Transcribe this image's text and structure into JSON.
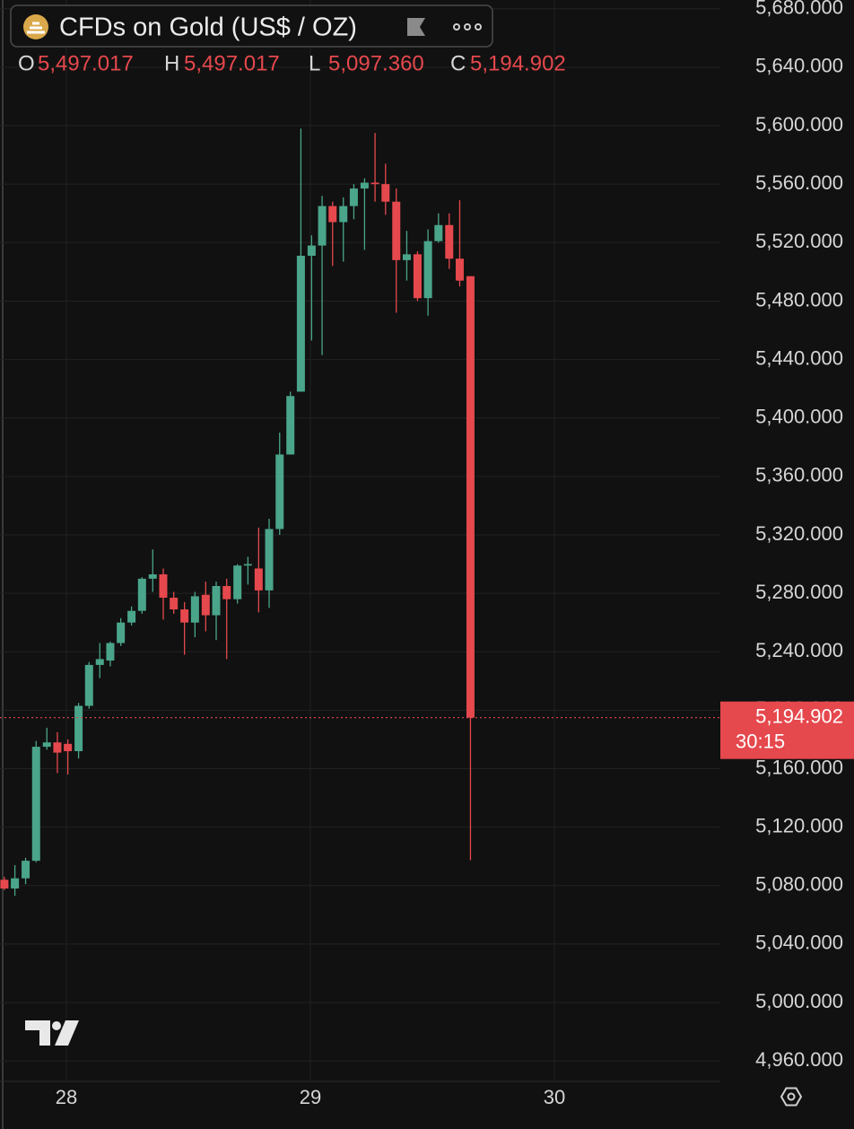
{
  "chart_data": {
    "type": "candlestick",
    "title": "CFDs on Gold (US$ / OZ)",
    "ohlc_legend": {
      "keys": [
        "O",
        "H",
        "L",
        "C"
      ],
      "values": [
        5497.017,
        5497.017,
        5097.36,
        5194.902
      ],
      "value_labels": [
        "5,497.017",
        "5,497.017",
        "5,097.360",
        "5,194.902"
      ]
    },
    "last_price": {
      "value": 5194.902,
      "label": "5,194.902",
      "countdown": "30:15"
    },
    "up_color": "#4aa58a",
    "down_color": "#e5484d",
    "grid": true,
    "xlim": [
      27.728,
      30.68
    ],
    "xticks": [
      28,
      29,
      30
    ],
    "ylim": [
      4946,
      5686
    ],
    "yticks": [
      {
        "value": 4960,
        "label": "4,960.000"
      },
      {
        "value": 5000,
        "label": "5,000.000"
      },
      {
        "value": 5040,
        "label": "5,040.000"
      },
      {
        "value": 5080,
        "label": "5,080.000"
      },
      {
        "value": 5120,
        "label": "5,120.000"
      },
      {
        "value": 5160,
        "label": "5,160.000"
      },
      {
        "value": 5200,
        "label": "5,200.000"
      },
      {
        "value": 5240,
        "label": "5,240.000"
      },
      {
        "value": 5280,
        "label": "5,280.000"
      },
      {
        "value": 5320,
        "label": "5,320.000"
      },
      {
        "value": 5360,
        "label": "5,360.000"
      },
      {
        "value": 5400,
        "label": "5,400.000"
      },
      {
        "value": 5440,
        "label": "5,440.000"
      },
      {
        "value": 5480,
        "label": "5,480.000"
      },
      {
        "value": 5520,
        "label": "5,520.000"
      },
      {
        "value": 5560,
        "label": "5,560.000"
      },
      {
        "value": 5600,
        "label": "5,600.000"
      },
      {
        "value": 5640,
        "label": "5,640.000"
      },
      {
        "value": 5680,
        "label": "5,680.000"
      }
    ],
    "series": [
      {
        "x": [
          27.746,
          27.789,
          27.833,
          27.876,
          27.92,
          27.963,
          28.006,
          28.05,
          28.093,
          28.137,
          28.18,
          28.223,
          28.267,
          28.31,
          28.354,
          28.397,
          28.44,
          28.484,
          28.527,
          28.571,
          28.614,
          28.657,
          28.701,
          28.744,
          28.788,
          28.831,
          28.874,
          28.918,
          28.961,
          29.005,
          29.048,
          29.091,
          29.135,
          29.178,
          29.222,
          29.265,
          29.308,
          29.352,
          29.395,
          29.439,
          29.482,
          29.525,
          29.569,
          29.612,
          29.656
        ],
        "open": [
          5084,
          5078,
          5085,
          5097,
          5175,
          5178,
          5177,
          5172,
          5203,
          5231,
          5234,
          5246,
          5260,
          5268,
          5290,
          5293,
          5277,
          5269,
          5260,
          5279,
          5265,
          5285,
          5276,
          5299,
          5297,
          5282,
          5324,
          5375,
          5418,
          5511,
          5518,
          5545,
          5534,
          5545,
          5557,
          5561,
          5560,
          5548,
          5508,
          5512,
          5482,
          5521,
          5532,
          5509,
          5497.017
        ],
        "high": [
          5086,
          5094,
          5099,
          5179,
          5188,
          5185,
          5180,
          5205,
          5233,
          5246,
          5247,
          5263,
          5271,
          5291,
          5310,
          5297,
          5281,
          5274,
          5281,
          5288,
          5288,
          5290,
          5300,
          5305,
          5325,
          5331,
          5390,
          5418,
          5598,
          5525,
          5552,
          5548,
          5551,
          5560,
          5564,
          5595,
          5574,
          5557,
          5528,
          5514,
          5529,
          5540,
          5540,
          5549,
          5497.017
        ],
        "low": [
          5077,
          5073,
          5081,
          5096,
          5173,
          5157,
          5156,
          5167,
          5201,
          5222,
          5230,
          5244,
          5258,
          5266,
          5281,
          5262,
          5266,
          5238,
          5250,
          5254,
          5248,
          5235,
          5273,
          5286,
          5267,
          5270,
          5320,
          5375,
          5418,
          5453,
          5443,
          5504,
          5507,
          5536,
          5515,
          5548,
          5539,
          5472,
          5494,
          5480,
          5470,
          5520,
          5502,
          5490,
          5097.36
        ],
        "close": [
          5078,
          5085,
          5097,
          5175,
          5178,
          5171,
          5172,
          5203,
          5231,
          5235,
          5246,
          5260,
          5268,
          5290,
          5293,
          5277,
          5269,
          5260,
          5278,
          5265,
          5285,
          5276,
          5299,
          5300,
          5282,
          5324,
          5375,
          5415,
          5511,
          5518,
          5545,
          5534,
          5545,
          5557,
          5561,
          5560,
          5548,
          5508,
          5512,
          5482,
          5521,
          5532,
          5509,
          5494,
          5194.902
        ]
      }
    ]
  }
}
